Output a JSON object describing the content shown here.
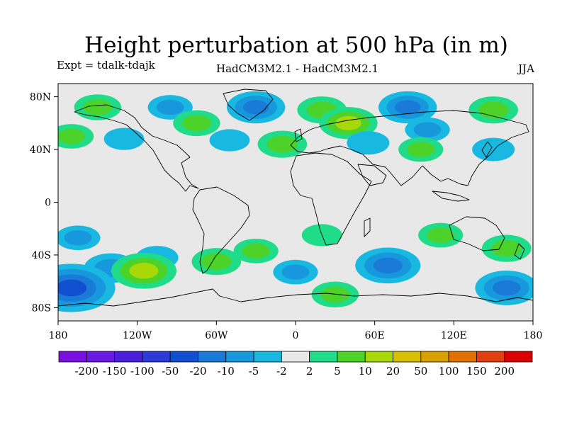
{
  "chart_data": {
    "type": "heatmap",
    "title": "Height perturbation at 500 hPa (in m)",
    "subtitle_left": "Expt = tdalk-tdajk",
    "subtitle_center": "HadCM3M2.1 - HadCM3M2.1",
    "subtitle_right": "JJA",
    "xlabel": "",
    "ylabel": "",
    "x_range": [
      -180,
      180
    ],
    "y_range": [
      -90,
      90
    ],
    "x_ticks": [
      {
        "value": -180,
        "label": "180"
      },
      {
        "value": -120,
        "label": "120W"
      },
      {
        "value": -60,
        "label": "60W"
      },
      {
        "value": 0,
        "label": "0"
      },
      {
        "value": 60,
        "label": "60E"
      },
      {
        "value": 120,
        "label": "120E"
      },
      {
        "value": 180,
        "label": "180"
      }
    ],
    "y_ticks": [
      {
        "value": 80,
        "label": "80N"
      },
      {
        "value": 40,
        "label": "40N"
      },
      {
        "value": 0,
        "label": "0"
      },
      {
        "value": -40,
        "label": "40S"
      },
      {
        "value": -80,
        "label": "80S"
      }
    ],
    "colorbar": {
      "colors": [
        "#7a10e0",
        "#6a1ae2",
        "#4a20dc",
        "#2c3ad8",
        "#1050d0",
        "#1a7ad8",
        "#1898dc",
        "#18b8e0",
        "#e8e8e8",
        "#20dc88",
        "#4cd228",
        "#a8d808",
        "#d8c000",
        "#d8a000",
        "#e07000",
        "#e04010",
        "#dc0000"
      ],
      "boundaries": [
        "-200",
        "-150",
        "-100",
        "-50",
        "-20",
        "-10",
        "-5",
        "-2",
        "2",
        "5",
        "10",
        "20",
        "50",
        "100",
        "150",
        "200"
      ]
    },
    "anomalies": [
      {
        "lon": -150,
        "lat": 72,
        "value": 7
      },
      {
        "lon": -170,
        "lat": 50,
        "value": 6
      },
      {
        "lon": -130,
        "lat": 48,
        "value": -4
      },
      {
        "lon": -95,
        "lat": 72,
        "value": -6
      },
      {
        "lon": -75,
        "lat": 60,
        "value": 7
      },
      {
        "lon": -50,
        "lat": 47,
        "value": -4
      },
      {
        "lon": -30,
        "lat": 72,
        "value": -12
      },
      {
        "lon": -10,
        "lat": 44,
        "value": 8
      },
      {
        "lon": 20,
        "lat": 70,
        "value": 8
      },
      {
        "lon": 40,
        "lat": 60,
        "value": 12
      },
      {
        "lon": 55,
        "lat": 45,
        "value": -5
      },
      {
        "lon": 85,
        "lat": 72,
        "value": -12
      },
      {
        "lon": 100,
        "lat": 55,
        "value": -6
      },
      {
        "lon": 95,
        "lat": 40,
        "value": 6
      },
      {
        "lon": 150,
        "lat": 70,
        "value": 8
      },
      {
        "lon": 150,
        "lat": 40,
        "value": -5
      },
      {
        "lon": -165,
        "lat": -27,
        "value": -6
      },
      {
        "lon": -105,
        "lat": -42,
        "value": -5
      },
      {
        "lon": -140,
        "lat": -50,
        "value": -10
      },
      {
        "lon": -115,
        "lat": -52,
        "value": 15
      },
      {
        "lon": -60,
        "lat": -45,
        "value": 8
      },
      {
        "lon": -170,
        "lat": -65,
        "value": -25
      },
      {
        "lon": -30,
        "lat": -37,
        "value": 6
      },
      {
        "lon": 20,
        "lat": -25,
        "value": 4
      },
      {
        "lon": 0,
        "lat": -53,
        "value": -6
      },
      {
        "lon": 70,
        "lat": -48,
        "value": -15
      },
      {
        "lon": 30,
        "lat": -70,
        "value": 7
      },
      {
        "lon": 110,
        "lat": -25,
        "value": 6
      },
      {
        "lon": 160,
        "lat": -35,
        "value": 8
      },
      {
        "lon": 160,
        "lat": -65,
        "value": -14
      }
    ]
  }
}
